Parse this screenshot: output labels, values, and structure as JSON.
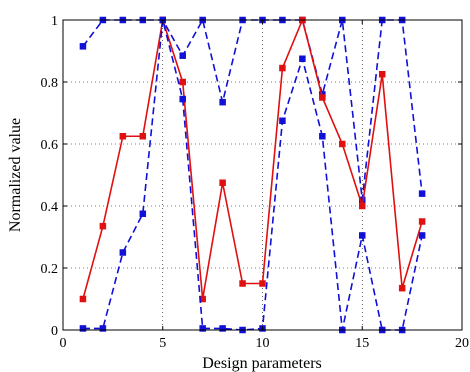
{
  "chart_data": {
    "type": "line",
    "title": "",
    "xlabel": "Design parameters",
    "ylabel": "Normalized value",
    "xlim": [
      0,
      20
    ],
    "ylim": [
      0,
      1
    ],
    "xticks": [
      0,
      5,
      10,
      15,
      20
    ],
    "yticks": [
      0,
      0.2,
      0.4,
      0.6,
      0.8,
      1
    ],
    "xtick_labels": [
      "0",
      "5",
      "10",
      "15",
      "20"
    ],
    "ytick_labels": [
      "0",
      "0.2",
      "0.4",
      "0.6",
      "0.8",
      "1"
    ],
    "grid": "dotted",
    "x": [
      1,
      2,
      3,
      4,
      5,
      6,
      7,
      8,
      9,
      10,
      11,
      12,
      13,
      14,
      15,
      16,
      17,
      18
    ],
    "series": [
      {
        "color": "#1010d8",
        "line_style": "dashed",
        "marker": "square",
        "values": [
          0.915,
          1.0,
          1.0,
          1.0,
          1.0,
          0.885,
          1.0,
          0.735,
          1.0,
          1.0,
          1.0,
          1.0,
          0.76,
          1.0,
          0.42,
          1.0,
          1.0,
          0.44
        ]
      },
      {
        "color": "#e01010",
        "line_style": "solid",
        "marker": "square",
        "values": [
          0.1,
          0.335,
          0.625,
          0.625,
          1.0,
          0.8,
          0.1,
          0.475,
          0.15,
          0.15,
          0.845,
          1.0,
          0.75,
          0.6,
          0.4,
          0.825,
          0.135,
          0.35
        ]
      },
      {
        "color": "#1010d8",
        "line_style": "dashed",
        "marker": "square",
        "values": [
          0.005,
          0.005,
          0.25,
          0.375,
          1.0,
          0.745,
          0.005,
          0.005,
          0.0,
          0.005,
          0.675,
          0.875,
          0.625,
          0.0,
          0.305,
          0.0,
          0.0,
          0.305
        ]
      }
    ]
  }
}
